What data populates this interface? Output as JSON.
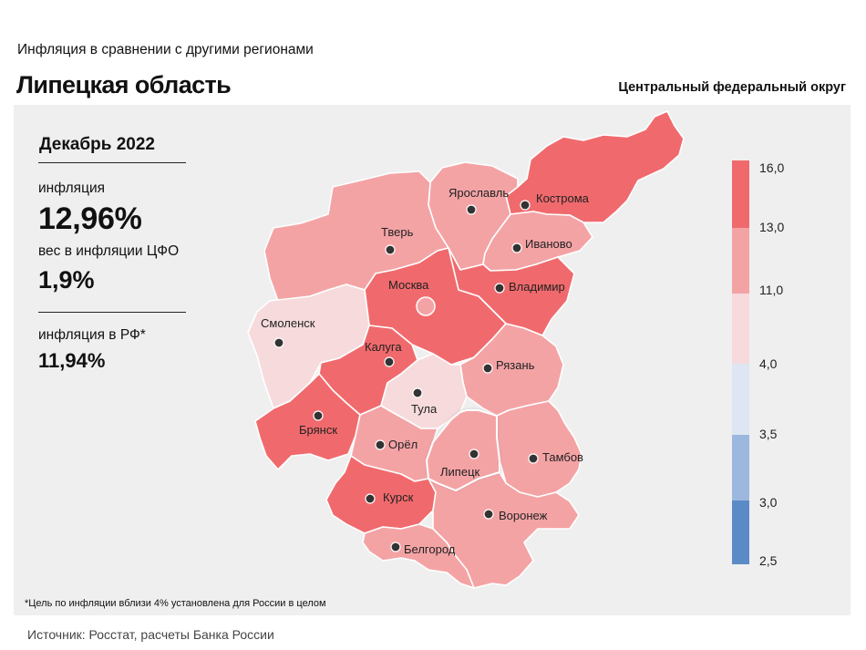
{
  "header": {
    "subtitle": "Инфляция  в сравнении  с другими  регионами",
    "title": "Липецкая область",
    "district": "Центральный федеральный округ"
  },
  "stats": {
    "period": "Декабрь 2022",
    "inflation_label": "инфляция",
    "inflation_value": "12,96%",
    "weight_label": "вес в инфляции  ЦФО",
    "weight_value": "1,9%",
    "rf_label": "инфляция  в РФ*",
    "rf_value": "11,94%"
  },
  "colors": {
    "bin_13_16": "#f06a6d",
    "bin_11_13": "#f4a3a5",
    "bin_4_11": "#f6dadc",
    "bin_35_4": "#dde6f2",
    "bin_3_35": "#9db8de",
    "bin_25_3": "#5b8bc7",
    "background": "#efefef"
  },
  "legend": {
    "ticks": [
      "16,0",
      "13,0",
      "11,0",
      "4,0",
      "3,5",
      "3,0",
      "2,5"
    ]
  },
  "regions": [
    {
      "id": "kostroma",
      "name": "Кострома",
      "bin": "bin_13_16"
    },
    {
      "id": "yaroslavl",
      "name": "Ярославль",
      "bin": "bin_11_13"
    },
    {
      "id": "ivanovo",
      "name": "Иваново",
      "bin": "bin_11_13"
    },
    {
      "id": "tver",
      "name": "Тверь",
      "bin": "bin_11_13"
    },
    {
      "id": "moscow",
      "name": "Москва",
      "bin": "bin_13_16"
    },
    {
      "id": "vladimir",
      "name": "Владимир",
      "bin": "bin_13_16"
    },
    {
      "id": "smolensk",
      "name": "Смоленск",
      "bin": "bin_4_11"
    },
    {
      "id": "kaluga",
      "name": "Калуга",
      "bin": "bin_13_16"
    },
    {
      "id": "ryazan",
      "name": "Рязань",
      "bin": "bin_11_13"
    },
    {
      "id": "tula",
      "name": "Тула",
      "bin": "bin_4_11"
    },
    {
      "id": "bryansk",
      "name": "Брянск",
      "bin": "bin_13_16"
    },
    {
      "id": "orel",
      "name": "Орёл",
      "bin": "bin_11_13"
    },
    {
      "id": "lipetsk",
      "name": "Липецк",
      "bin": "bin_11_13",
      "highlighted": true
    },
    {
      "id": "tambov",
      "name": "Тамбов",
      "bin": "bin_11_13"
    },
    {
      "id": "kursk",
      "name": "Курск",
      "bin": "bin_13_16"
    },
    {
      "id": "voronezh",
      "name": "Воронеж",
      "bin": "bin_11_13"
    },
    {
      "id": "belgorod",
      "name": "Белгород",
      "bin": "bin_11_13"
    }
  ],
  "footnote": "*Цель по инфляции вблизи 4% установлена для России в целом",
  "source": "Источник: Росстат, расчеты Банка России"
}
